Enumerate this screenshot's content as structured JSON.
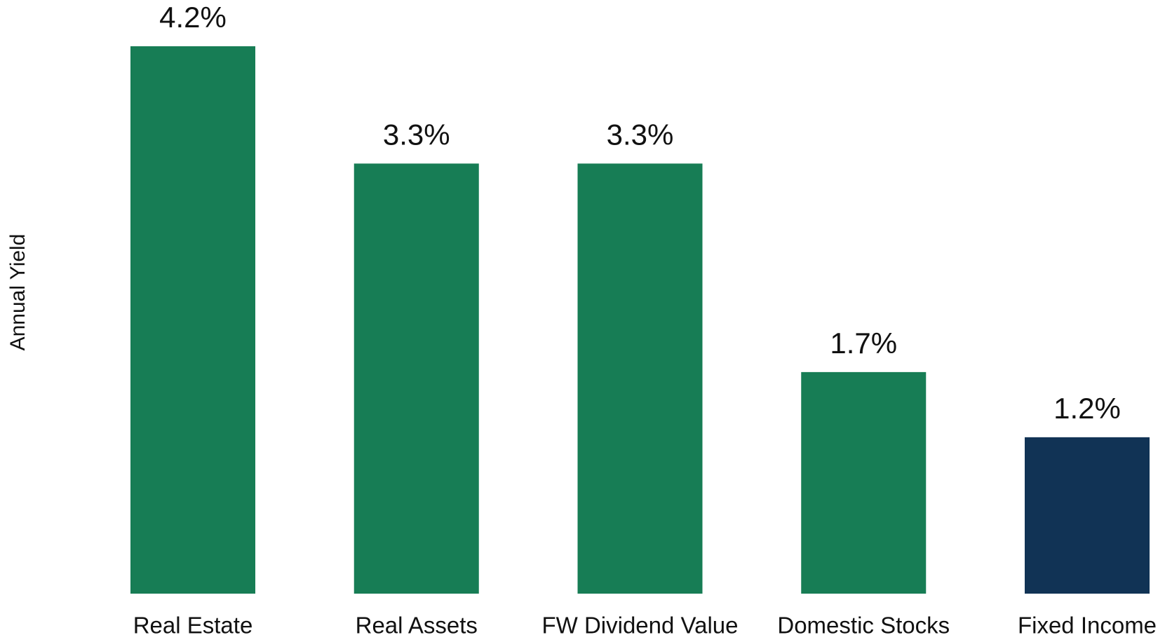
{
  "chart_data": {
    "type": "bar",
    "y_label": "Annual Yield",
    "categories": [
      "Real Estate",
      "Real Assets",
      "FW Dividend Value",
      "Domestic Stocks",
      "Fixed Income"
    ],
    "values": [
      4.2,
      3.3,
      3.3,
      1.7,
      1.2
    ],
    "value_labels": [
      "4.2%",
      "3.3%",
      "3.3%",
      "1.7%",
      "1.2%"
    ],
    "colors": [
      "#177d55",
      "#177d55",
      "#177d55",
      "#177d55",
      "#113355"
    ],
    "ylim": [
      0,
      4.2
    ],
    "grid": false
  }
}
